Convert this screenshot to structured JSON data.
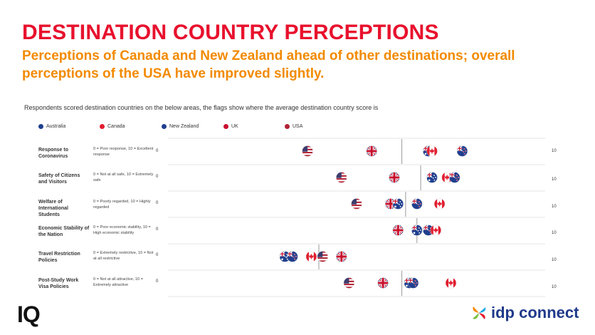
{
  "header": {
    "title": "DESTINATION COUNTRY PERCEPTIONS",
    "subtitle": "Perceptions of Canada and New Zealand ahead of other destinations; overall perceptions of the USA have improved slightly."
  },
  "chart_data": {
    "type": "scatter",
    "note": "Respondents scored destination countries on the below areas, the flags show where the average destination country score is",
    "axis": {
      "min_label": "0",
      "max_label": "10",
      "xlim": [
        0,
        10
      ]
    },
    "legend": [
      "Australia",
      "Canada",
      "New Zealand",
      "UK",
      "USA"
    ],
    "colors": {
      "australia": "#1f3f8f",
      "canada": "#e21d2f",
      "new_zealand": "#1f3f8f",
      "uk": "#c8102e",
      "usa": "#b22234"
    },
    "rows": [
      {
        "label": "Response to Coronavirus",
        "scale": "0 = Poor response, 10 = Excellent response",
        "average": 6.2,
        "values": {
          "USA": 3.7,
          "UK": 5.4,
          "Australia": 6.9,
          "Canada": 7.0,
          "New Zealand": 7.8
        }
      },
      {
        "label": "Safety of Citizens and Visitors",
        "scale": "0 = Not at all safe, 10 = Extremely safe",
        "average": 6.7,
        "values": {
          "USA": 4.6,
          "UK": 6.0,
          "Australia": 7.0,
          "Canada": 7.4,
          "New Zealand": 7.6
        }
      },
      {
        "label": "Welfare of International Students",
        "scale": "0 = Poorly regarded, 10 = Highly regarded",
        "average": 6.3,
        "values": {
          "USA": 5.0,
          "UK": 5.9,
          "Australia": 6.1,
          "New Zealand": 6.6,
          "Canada": 7.2
        }
      },
      {
        "label": "Economic Stability of the Nation",
        "scale": "0 = Poor economic stability, 10 = High economic stability",
        "average": 6.6,
        "values": {
          "UK": 6.1,
          "Australia": 6.6,
          "New Zealand": 6.9,
          "Canada": 7.1
        }
      },
      {
        "label": "Travel Restriction Policies",
        "scale": "0 = Extremely restrictive, 10 = Not at all restrictive",
        "average": 4.0,
        "values": {
          "Australia": 3.1,
          "New Zealand": 3.3,
          "Canada": 3.8,
          "USA": 4.1,
          "UK": 4.6
        }
      },
      {
        "label": "Post-Study Work Visa Policies",
        "scale": "0 = Not at all attractive, 10 = Extremely attractive",
        "average": 6.2,
        "values": {
          "USA": 4.8,
          "UK": 5.7,
          "Australia": 6.4,
          "New Zealand": 6.5,
          "Canada": 7.5
        }
      }
    ]
  },
  "footer": {
    "left_logo": "IQ",
    "right_logo": "idp connect"
  }
}
